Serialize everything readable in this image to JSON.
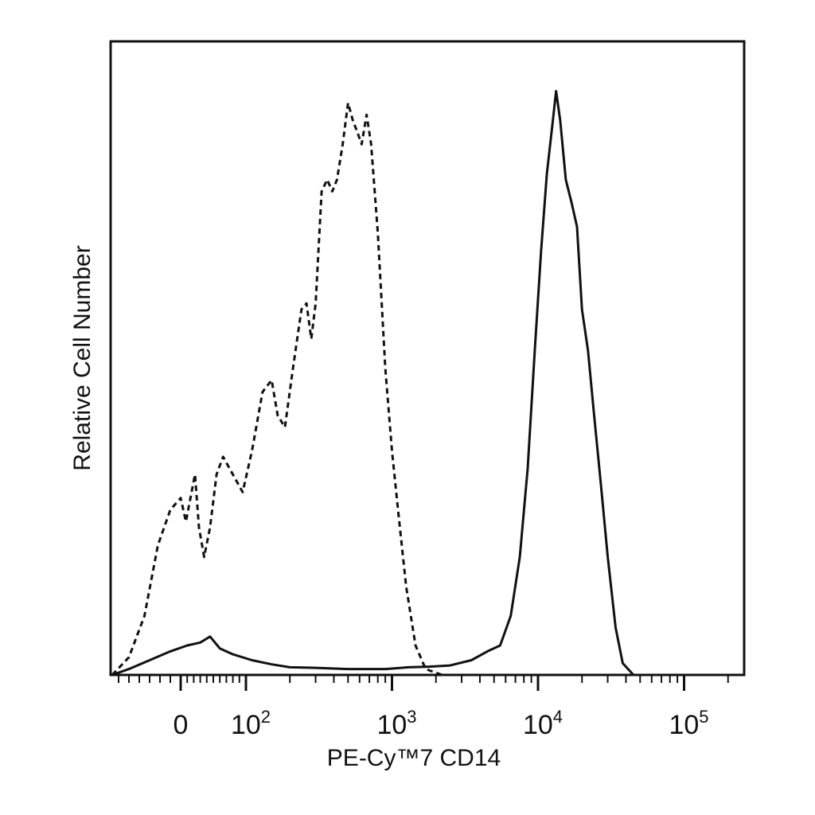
{
  "chart_data": {
    "type": "line",
    "title": "",
    "xlabel": "PE-Cy™7 CD14",
    "ylabel": "Relative Cell Number",
    "x_scale": "biexponential",
    "xlim": [
      -100,
      200000
    ],
    "ylim": [
      0,
      1
    ],
    "grid": false,
    "legend": "none",
    "major_ticks": [
      {
        "value": 0,
        "label": "0",
        "base": "",
        "exp": ""
      },
      {
        "value": 100,
        "label": "10^2",
        "base": "10",
        "exp": "2"
      },
      {
        "value": 1000,
        "label": "10^3",
        "base": "10",
        "exp": "3"
      },
      {
        "value": 10000,
        "label": "10^4",
        "base": "10",
        "exp": "4"
      },
      {
        "value": 100000,
        "label": "10^5",
        "base": "10",
        "exp": "5"
      }
    ],
    "series": [
      {
        "style": "dashed",
        "color": "#111111",
        "points": [
          [
            -70,
            0.0
          ],
          [
            -50,
            0.03
          ],
          [
            -35,
            0.1
          ],
          [
            -22,
            0.22
          ],
          [
            -10,
            0.28
          ],
          [
            0,
            0.3
          ],
          [
            8,
            0.26
          ],
          [
            15,
            0.3
          ],
          [
            22,
            0.34
          ],
          [
            28,
            0.25
          ],
          [
            36,
            0.2
          ],
          [
            45,
            0.25
          ],
          [
            55,
            0.34
          ],
          [
            65,
            0.37
          ],
          [
            75,
            0.35
          ],
          [
            85,
            0.33
          ],
          [
            95,
            0.31
          ],
          [
            110,
            0.38
          ],
          [
            130,
            0.48
          ],
          [
            150,
            0.5
          ],
          [
            165,
            0.44
          ],
          [
            185,
            0.42
          ],
          [
            210,
            0.52
          ],
          [
            240,
            0.62
          ],
          [
            260,
            0.63
          ],
          [
            280,
            0.57
          ],
          [
            300,
            0.63
          ],
          [
            330,
            0.82
          ],
          [
            360,
            0.84
          ],
          [
            390,
            0.82
          ],
          [
            420,
            0.84
          ],
          [
            460,
            0.9
          ],
          [
            500,
            0.97
          ],
          [
            540,
            0.94
          ],
          [
            580,
            0.92
          ],
          [
            620,
            0.9
          ],
          [
            670,
            0.95
          ],
          [
            720,
            0.9
          ],
          [
            800,
            0.75
          ],
          [
            900,
            0.52
          ],
          [
            1000,
            0.38
          ],
          [
            1100,
            0.28
          ],
          [
            1250,
            0.15
          ],
          [
            1450,
            0.05
          ],
          [
            1700,
            0.01
          ],
          [
            2200,
            0.0
          ],
          [
            200000,
            0.0
          ]
        ]
      },
      {
        "style": "solid",
        "color": "#111111",
        "points": [
          [
            -70,
            0.0
          ],
          [
            -50,
            0.01
          ],
          [
            -30,
            0.025
          ],
          [
            -10,
            0.04
          ],
          [
            10,
            0.05
          ],
          [
            30,
            0.055
          ],
          [
            45,
            0.065
          ],
          [
            60,
            0.045
          ],
          [
            80,
            0.035
          ],
          [
            110,
            0.025
          ],
          [
            150,
            0.018
          ],
          [
            200,
            0.013
          ],
          [
            300,
            0.012
          ],
          [
            500,
            0.01
          ],
          [
            900,
            0.01
          ],
          [
            1300,
            0.013
          ],
          [
            1800,
            0.014
          ],
          [
            2500,
            0.016
          ],
          [
            3500,
            0.025
          ],
          [
            4500,
            0.04
          ],
          [
            5500,
            0.05
          ],
          [
            6500,
            0.1
          ],
          [
            7500,
            0.2
          ],
          [
            8500,
            0.35
          ],
          [
            9500,
            0.55
          ],
          [
            10500,
            0.72
          ],
          [
            11500,
            0.85
          ],
          [
            12500,
            0.93
          ],
          [
            13300,
            0.99
          ],
          [
            14200,
            0.94
          ],
          [
            15500,
            0.84
          ],
          [
            17000,
            0.8
          ],
          [
            18500,
            0.76
          ],
          [
            20000,
            0.62
          ],
          [
            22000,
            0.55
          ],
          [
            24000,
            0.45
          ],
          [
            27000,
            0.32
          ],
          [
            30000,
            0.2
          ],
          [
            34000,
            0.08
          ],
          [
            38000,
            0.02
          ],
          [
            45000,
            0.0
          ],
          [
            200000,
            0.0
          ]
        ]
      }
    ]
  }
}
